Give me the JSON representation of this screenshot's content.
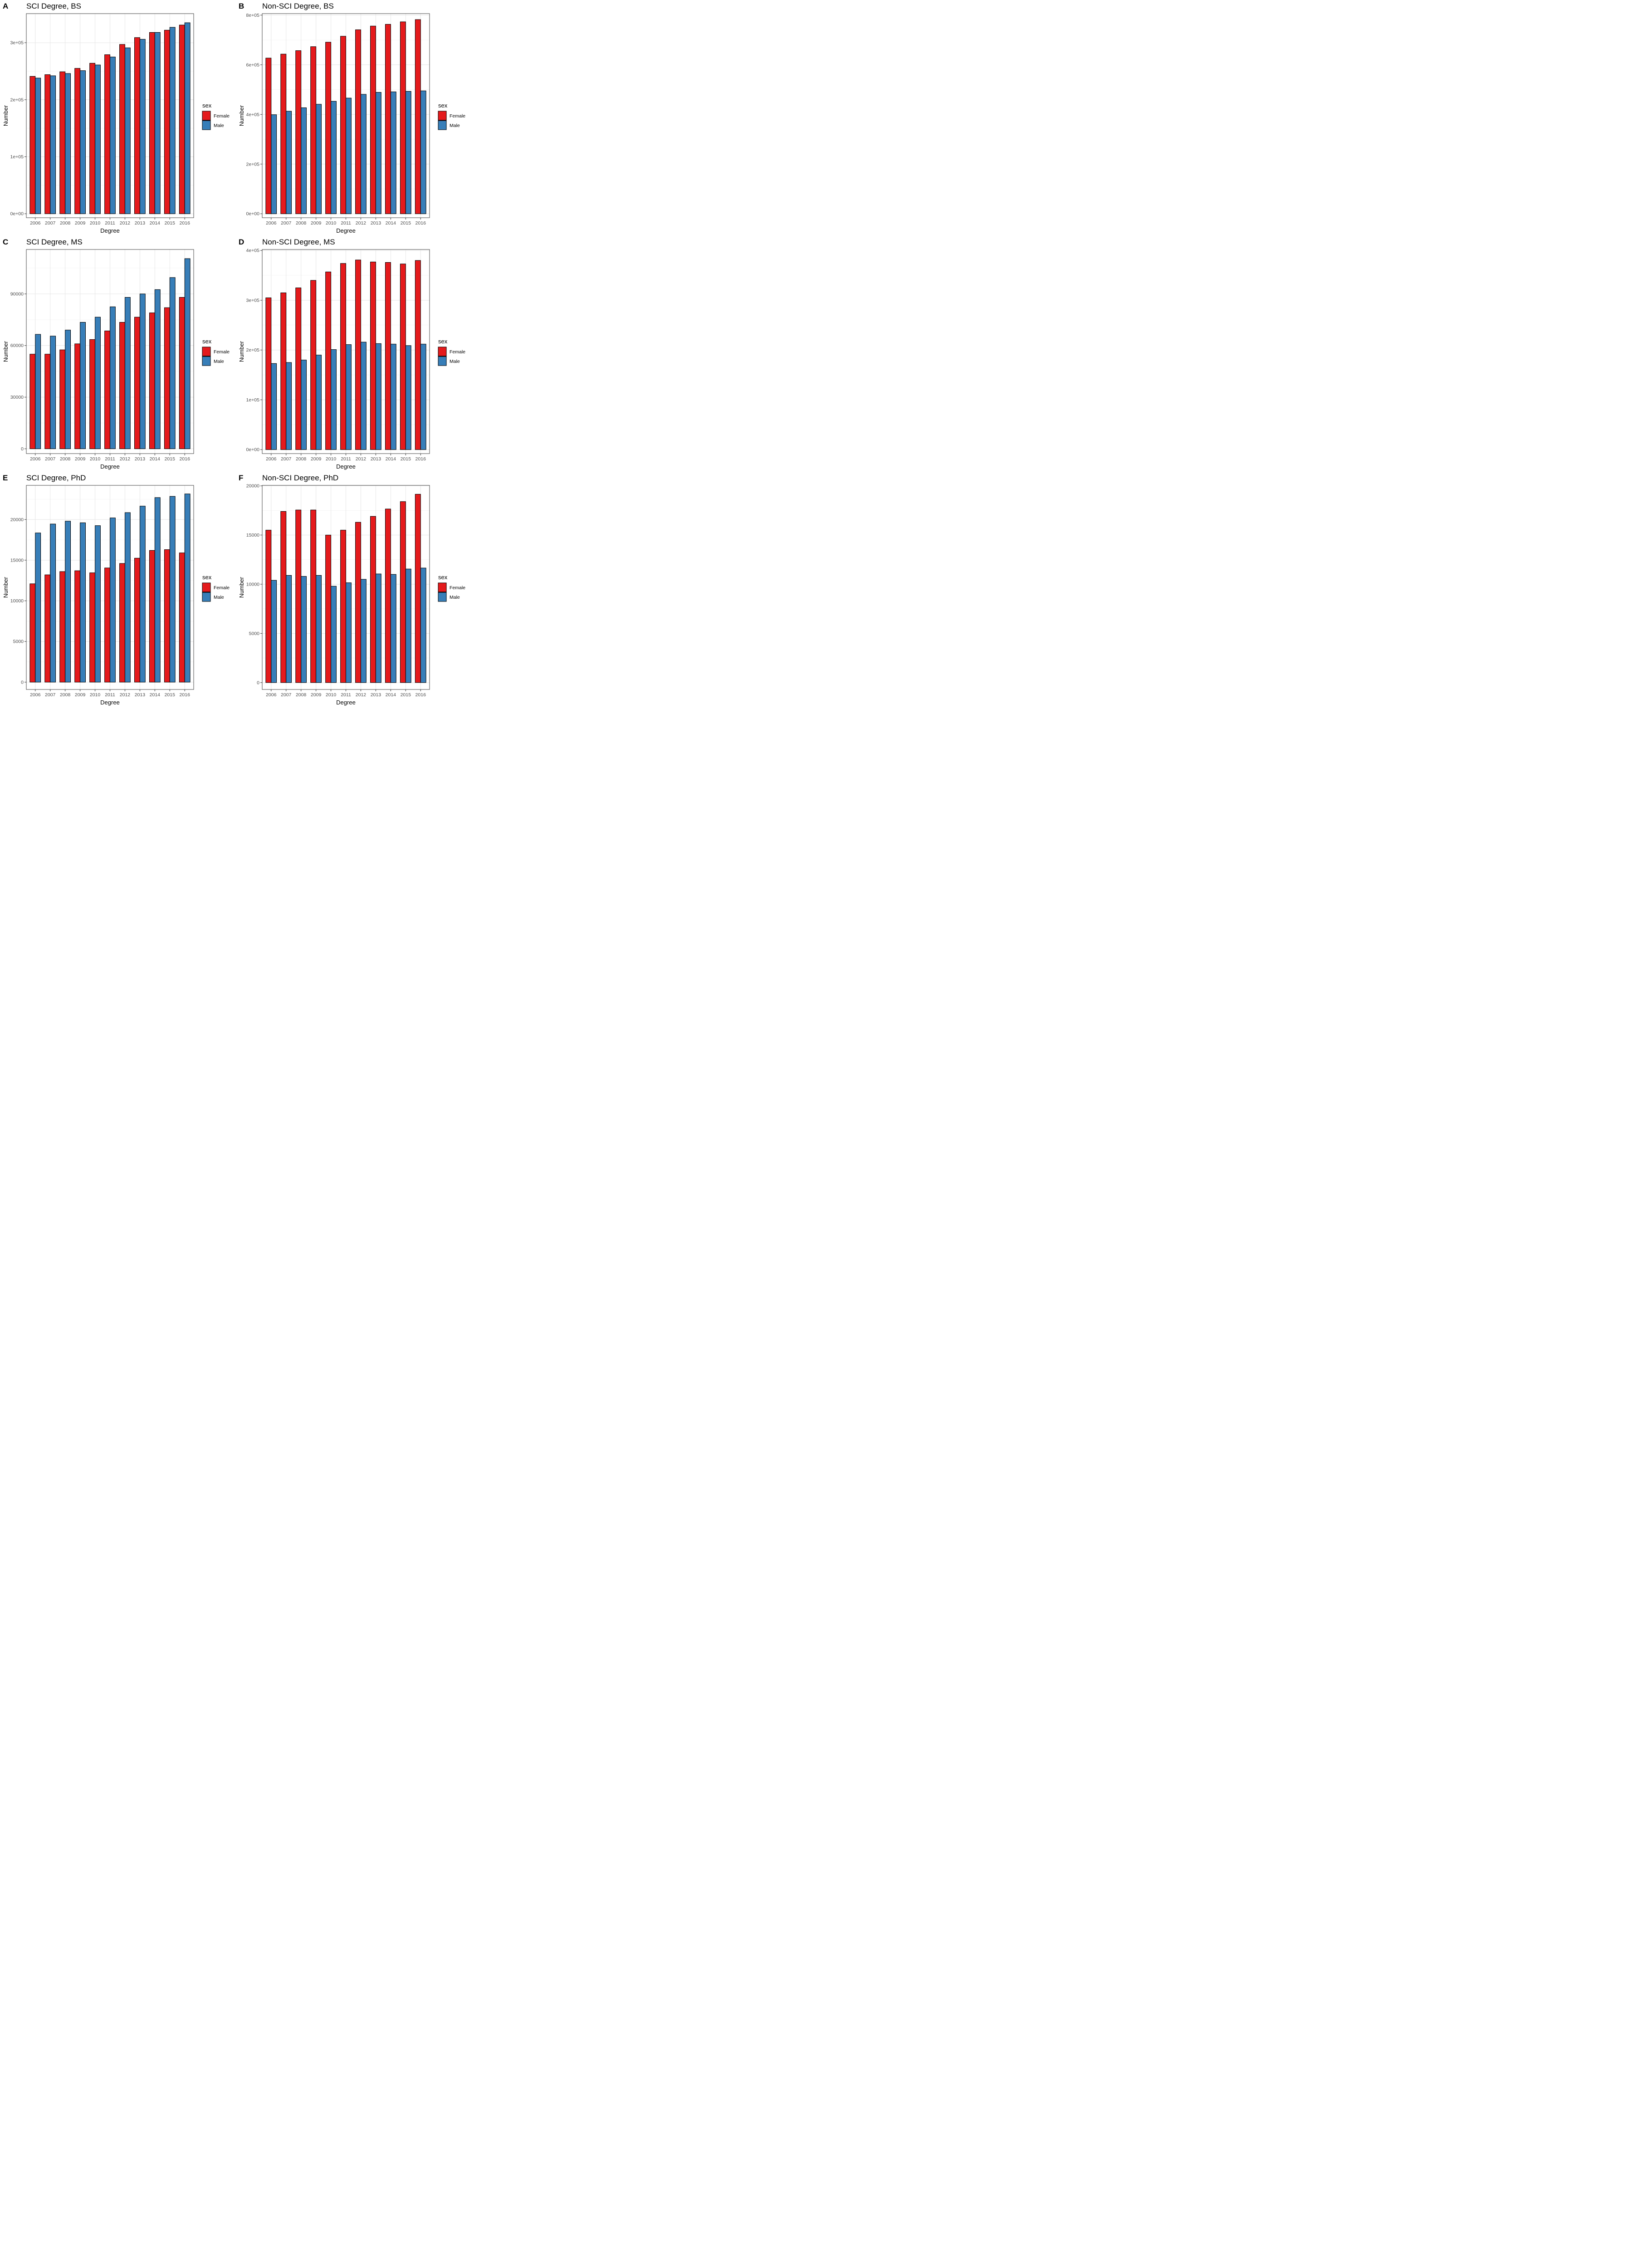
{
  "colors": {
    "female": "#E41A1C",
    "male": "#377EB8"
  },
  "chart_data": [
    {
      "panel": "A",
      "type": "bar",
      "title": "SCI Degree, BS",
      "xlabel": "Degree",
      "ylabel": "Number",
      "legend_title": "sex",
      "legend_position": "right",
      "categories": [
        "2006",
        "2007",
        "2008",
        "2009",
        "2010",
        "2011",
        "2012",
        "2013",
        "2014",
        "2015",
        "2016"
      ],
      "series": [
        {
          "name": "Female",
          "values": [
            241000,
            244000,
            249000,
            255000,
            264000,
            279000,
            297000,
            309000,
            318000,
            322000,
            331000
          ]
        },
        {
          "name": "Male",
          "values": [
            238000,
            242000,
            246000,
            251000,
            261000,
            275000,
            291000,
            306000,
            318000,
            327000,
            335000
          ]
        }
      ],
      "ylim": [
        -7000,
        351000
      ],
      "yticks": [
        0,
        100000,
        200000,
        300000
      ],
      "ytick_labels": [
        "0e+00",
        "1e+05",
        "2e+05",
        "3e+05"
      ],
      "grid": true
    },
    {
      "panel": "B",
      "type": "bar",
      "title": "Non-SCI Degree, BS",
      "xlabel": "Degree",
      "ylabel": "Number",
      "legend_title": "sex",
      "legend_position": "right",
      "categories": [
        "2006",
        "2007",
        "2008",
        "2009",
        "2010",
        "2011",
        "2012",
        "2013",
        "2014",
        "2015",
        "2016"
      ],
      "series": [
        {
          "name": "Female",
          "values": [
            627000,
            643000,
            657000,
            673000,
            691000,
            715000,
            741000,
            756000,
            763000,
            773000,
            782000
          ]
        },
        {
          "name": "Male",
          "values": [
            399000,
            413000,
            427000,
            441000,
            453000,
            466000,
            481000,
            489000,
            491000,
            493000,
            495000
          ]
        }
      ],
      "ylim": [
        -16000,
        806000
      ],
      "yticks": [
        0,
        200000,
        400000,
        600000,
        800000
      ],
      "ytick_labels": [
        "0e+00",
        "2e+05",
        "4e+05",
        "6e+05",
        "8e+05"
      ],
      "grid": true
    },
    {
      "panel": "C",
      "type": "bar",
      "title": "SCI Degree, MS",
      "xlabel": "Degree",
      "ylabel": "Number",
      "legend_title": "sex",
      "legend_position": "right",
      "categories": [
        "2006",
        "2007",
        "2008",
        "2009",
        "2010",
        "2011",
        "2012",
        "2013",
        "2014",
        "2015",
        "2016"
      ],
      "series": [
        {
          "name": "Female",
          "values": [
            55000,
            55000,
            57500,
            61000,
            63500,
            68500,
            73500,
            76500,
            79000,
            82000,
            88000
          ]
        },
        {
          "name": "Male",
          "values": [
            66500,
            65500,
            69000,
            73500,
            76500,
            82500,
            88000,
            90000,
            92500,
            99500,
            110500
          ]
        }
      ],
      "ylim": [
        -2800,
        115800
      ],
      "yticks": [
        0,
        30000,
        60000,
        90000
      ],
      "ytick_labels": [
        "0",
        "30000",
        "60000",
        "90000"
      ],
      "grid": true
    },
    {
      "panel": "D",
      "type": "bar",
      "title": "Non-SCI Degree, MS",
      "xlabel": "Degree",
      "ylabel": "Number",
      "legend_title": "sex",
      "legend_position": "right",
      "categories": [
        "2006",
        "2007",
        "2008",
        "2009",
        "2010",
        "2011",
        "2012",
        "2013",
        "2014",
        "2015",
        "2016"
      ],
      "series": [
        {
          "name": "Female",
          "values": [
            305000,
            315000,
            325000,
            340000,
            357000,
            374000,
            381000,
            377000,
            376000,
            373000,
            380000
          ]
        },
        {
          "name": "Male",
          "values": [
            173000,
            175000,
            180000,
            190000,
            201000,
            211000,
            216000,
            213000,
            212000,
            209000,
            212000
          ]
        }
      ],
      "ylim": [
        -8000,
        402000
      ],
      "yticks": [
        0,
        100000,
        200000,
        300000,
        400000
      ],
      "ytick_labels": [
        "0e+00",
        "1e+05",
        "2e+05",
        "3e+05",
        "4e+05"
      ],
      "grid": true
    },
    {
      "panel": "E",
      "type": "bar",
      "title": "SCI Degree, PhD",
      "xlabel": "Degree",
      "ylabel": "Number",
      "legend_title": "sex",
      "legend_position": "right",
      "categories": [
        "2006",
        "2007",
        "2008",
        "2009",
        "2010",
        "2011",
        "2012",
        "2013",
        "2014",
        "2015",
        "2016"
      ],
      "series": [
        {
          "name": "Female",
          "values": [
            12100,
            13200,
            13600,
            13700,
            13450,
            14050,
            14600,
            15250,
            16200,
            16300,
            15900
          ]
        },
        {
          "name": "Male",
          "values": [
            18350,
            19450,
            19800,
            19600,
            19250,
            20200,
            20850,
            21650,
            22700,
            22850,
            23150
          ]
        }
      ],
      "ylim": [
        -900,
        24200
      ],
      "yticks": [
        0,
        5000,
        10000,
        15000,
        20000
      ],
      "ytick_labels": [
        "0",
        "5000",
        "10000",
        "15000",
        "20000"
      ],
      "grid": true
    },
    {
      "panel": "F",
      "type": "bar",
      "title": "Non-SCI Degree, PhD",
      "xlabel": "Degree",
      "ylabel": "Number",
      "legend_title": "sex",
      "legend_position": "right",
      "categories": [
        "2006",
        "2007",
        "2008",
        "2009",
        "2010",
        "2011",
        "2012",
        "2013",
        "2014",
        "2015",
        "2016"
      ],
      "series": [
        {
          "name": "Female",
          "values": [
            15500,
            17400,
            17550,
            17550,
            15000,
            15500,
            16300,
            16900,
            17650,
            18400,
            19150
          ]
        },
        {
          "name": "Male",
          "values": [
            10400,
            10900,
            10800,
            10900,
            9800,
            10150,
            10500,
            11050,
            11000,
            11550,
            11650
          ]
        }
      ],
      "ylim": [
        -700,
        20050
      ],
      "yticks": [
        0,
        5000,
        10000,
        15000,
        20000
      ],
      "ytick_labels": [
        "0",
        "5000",
        "10000",
        "15000",
        "20000"
      ],
      "grid": true
    }
  ]
}
